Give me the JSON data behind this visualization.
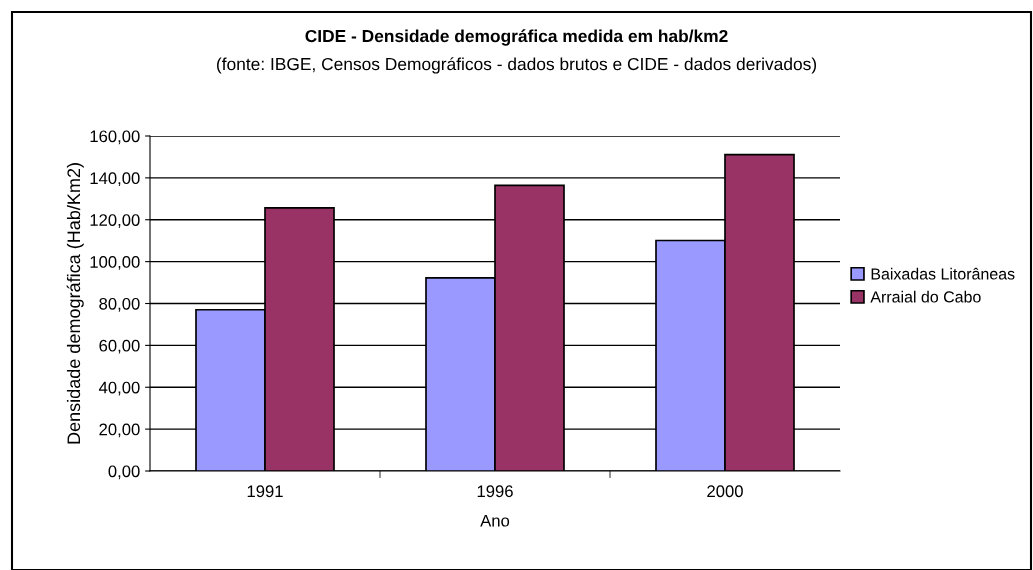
{
  "chart_data": {
    "type": "bar",
    "title": "CIDE - Densidade demográfica medida em hab/km2",
    "subtitle": "(fonte: IBGE, Censos Demográficos - dados brutos e CIDE - dados derivados)",
    "xlabel": "Ano",
    "ylabel": "Densidade demográfica (Hab/Km2)",
    "categories": [
      "1991",
      "1996",
      "2000"
    ],
    "series": [
      {
        "name": "Baixadas Litorâneas",
        "color": "#9999ff",
        "values": [
          77,
          92.2,
          110.1
        ]
      },
      {
        "name": "Arraial do Cabo",
        "color": "#993366",
        "values": [
          125.7,
          136.4,
          151.1
        ]
      }
    ],
    "ylim": [
      0,
      160
    ],
    "yticks": [
      {
        "value": 0,
        "label": "0,00"
      },
      {
        "value": 20,
        "label": "20,00"
      },
      {
        "value": 40,
        "label": "40,00"
      },
      {
        "value": 60,
        "label": "60,00"
      },
      {
        "value": 80,
        "label": "80,00"
      },
      {
        "value": 100,
        "label": "100,00"
      },
      {
        "value": 120,
        "label": "120,00"
      },
      {
        "value": 140,
        "label": "140,00"
      },
      {
        "value": 160,
        "label": "160,00"
      }
    ],
    "grid": "y",
    "legend": "right"
  }
}
